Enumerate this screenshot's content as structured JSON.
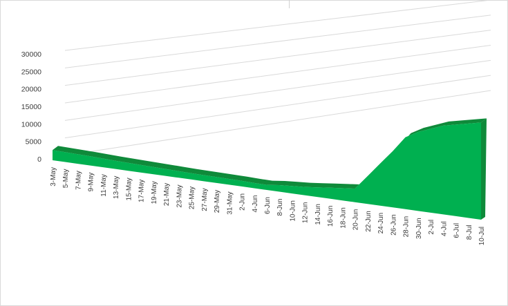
{
  "chart_data": {
    "type": "area",
    "title": "",
    "xlabel": "",
    "ylabel": "",
    "ylim": [
      0,
      30000
    ],
    "y_ticks": [
      "0",
      "5000",
      "10000",
      "15000",
      "20000",
      "25000",
      "30000"
    ],
    "x": [
      "3-May",
      "5-May",
      "7-May",
      "9-May",
      "11-May",
      "13-May",
      "15-May",
      "17-May",
      "19-May",
      "21-May",
      "23-May",
      "25-May",
      "27-May",
      "29-May",
      "31-May",
      "2-Jun",
      "4-Jun",
      "6-Jun",
      "8-Jun",
      "10-Jun",
      "12-Jun",
      "14-Jun",
      "16-Jun",
      "18-Jun",
      "20-Jun",
      "22-Jun",
      "24-Jun",
      "26-Jun",
      "28-Jun",
      "30-Jun",
      "2-Jul",
      "4-Jul",
      "6-Jul",
      "8-Jul",
      "10-Jul"
    ],
    "values": [
      2800,
      2700,
      2600,
      2500,
      2350,
      2200,
      2100,
      2000,
      1900,
      1800,
      1700,
      1600,
      1550,
      1500,
      1450,
      1400,
      1300,
      1250,
      1600,
      1800,
      2000,
      2300,
      2600,
      2900,
      3200,
      6500,
      9800,
      13000,
      16500,
      18000,
      19000,
      20000,
      20500,
      21000,
      21500
    ],
    "grid": true,
    "legend": "none",
    "colors": {
      "fill": "#00b050",
      "top": "#0f8a3a",
      "grid": "#d9d9d9",
      "axis_text": "#3a3a3a"
    }
  }
}
